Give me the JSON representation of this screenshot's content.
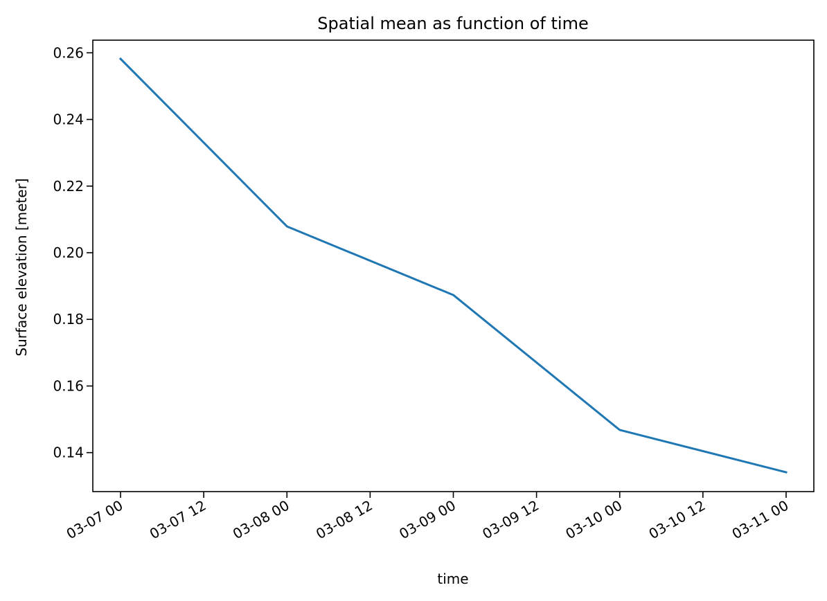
{
  "chart_data": {
    "type": "line",
    "title": "Spatial mean as function of time",
    "xlabel": "time",
    "ylabel": "Surface elevation [meter]",
    "x_tick_labels": [
      "03-07 00",
      "03-07 12",
      "03-08 00",
      "03-08 12",
      "03-09 00",
      "03-09 12",
      "03-10 00",
      "03-10 12",
      "03-11 00"
    ],
    "y_tick_labels": [
      "0.14",
      "0.16",
      "0.18",
      "0.20",
      "0.22",
      "0.24",
      "0.26"
    ],
    "y_ticks": [
      0.14,
      0.16,
      0.18,
      0.2,
      0.22,
      0.24,
      0.26
    ],
    "xlim": [
      "03-06 20",
      "03-11 04"
    ],
    "ylim": [
      0.1283,
      0.2638
    ],
    "grid": false,
    "series": [
      {
        "color": "#1f77b4",
        "x": [
          "03-07 00",
          "03-08 00",
          "03-09 00",
          "03-10 00",
          "03-11 00"
        ],
        "y": [
          0.2582,
          0.2079,
          0.1873,
          0.1468,
          0.1341
        ]
      }
    ]
  }
}
